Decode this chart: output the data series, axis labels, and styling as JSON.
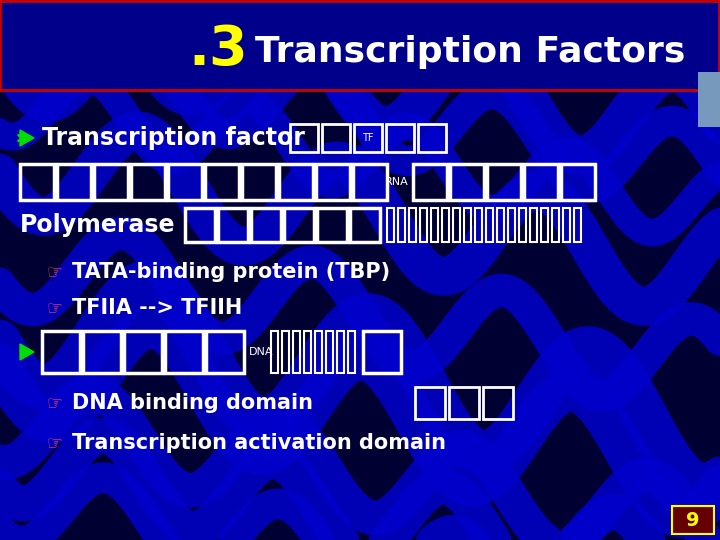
{
  "bg_color": "#000033",
  "title_number": ".3",
  "title_text": "Transcription Factors",
  "title_number_color": "#FFFF00",
  "title_text_color": "#FFFFFF",
  "title_bg_color": "#00008B",
  "title_border_color": "#CC0000",
  "wave_color": "#0000CC",
  "bullet_color": "#00DD00",
  "sub_bullet_color": "#FF5555",
  "main_text_color": "#FFFFFF",
  "box_color": "#FFFFFF",
  "sub1": "TATA-binding protein (TBP)",
  "sub2": "TFIIA --> TFIIH",
  "sub3": "DNA binding domain ",
  "sub4": "Transcription activation domain",
  "page_num": "9",
  "page_num_color": "#FFFF00",
  "page_num_bg": "#660000",
  "blue_deco_color": "#7799BB"
}
